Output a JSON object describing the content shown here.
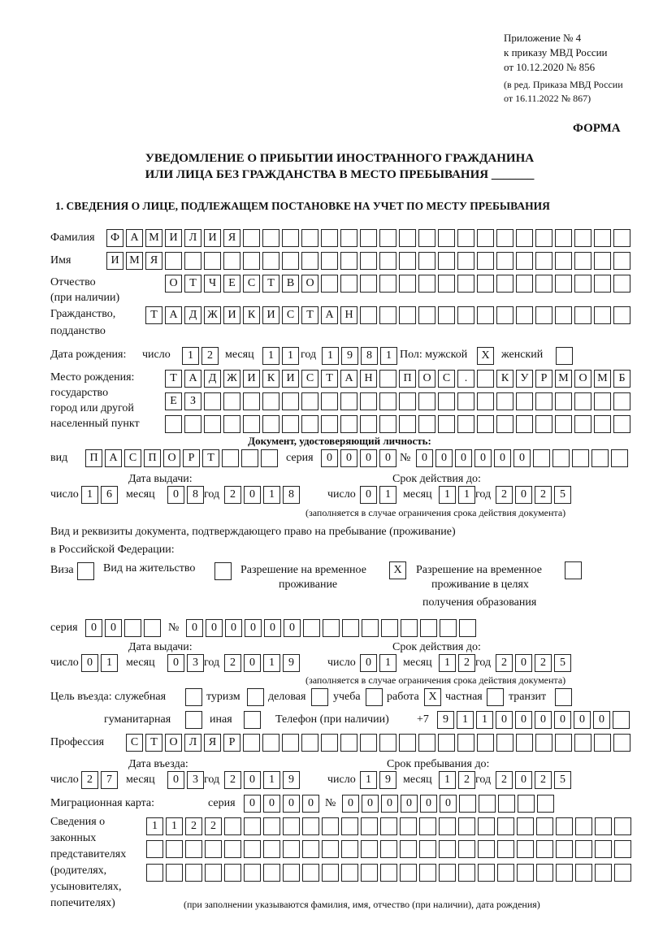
{
  "header": {
    "appendix": "Приложение № 4",
    "order": "к приказу МВД России",
    "order_date": "от 10.12.2020 № 856",
    "revision1": "(в ред. Приказа МВД России",
    "revision2": "от 16.11.2022 № 867)",
    "form": "ФОРМА",
    "title1": "УВЕДОМЛЕНИЕ О ПРИБЫТИИ ИНОСТРАННОГО ГРАЖДАНИНА",
    "title2": "ИЛИ ЛИЦА БЕЗ ГРАЖДАНСТВА В МЕСТО ПРЕБЫВАНИЯ _______",
    "section": "1. СВЕДЕНИЯ О ЛИЦЕ, ПОДЛЕЖАЩЕМ ПОСТАНОВКЕ НА УЧЕТ ПО МЕСТУ ПРЕБЫВАНИЯ"
  },
  "person": {
    "surname_label": "Фамилия",
    "surname": "ФАМИЛИЯ",
    "name_label": "Имя",
    "name": "ИМЯ",
    "patronymic_label": "Отчество",
    "patronymic_label2": "(при наличии)",
    "patronymic": "ОТЧЕСТВО",
    "citizenship_label": "Гражданство,",
    "citizenship_label2": "подданство",
    "citizenship": "ТАДЖИКИСТАН",
    "birth_label": "Дата рождения:",
    "day_label": "число",
    "month_label": "месяц",
    "year_label": "год",
    "birth_day": "12",
    "birth_month": "11",
    "birth_year": "1981",
    "sex_label": "Пол: мужской",
    "male": "X",
    "female_label": "женский",
    "female": "",
    "birthplace_label1": "Место рождения:",
    "birthplace_label2": "государство",
    "birthplace_label3": "город или другой",
    "birthplace_label4": "населенный пункт",
    "birthplace_row1": "ТАДЖИКИСТАН ПОС. КУРМОМБ",
    "birthplace_row2": "ЕЗ",
    "birthplace_row3": ""
  },
  "id_document": {
    "heading": "Документ, удостоверяющий личность:",
    "type_label": "вид",
    "type": "ПАСПОРТ",
    "series_label": "серия",
    "series": "0000",
    "number_label": "№",
    "number": "000000",
    "issue_label": "Дата выдачи:",
    "valid_label": "Срок действия до:",
    "day_label": "число",
    "month_label": "месяц",
    "year_label": "год",
    "issue_day": "16",
    "issue_month": "08",
    "issue_year": "2018",
    "valid_day": "01",
    "valid_month": "11",
    "valid_year": "2025",
    "note": "(заполняется в случае ограничения срока действия документа)"
  },
  "residence_document": {
    "heading1": "Вид и реквизиты документа, подтверждающего право на пребывание (проживание)",
    "heading2": "в Российской Федерации:",
    "visa_label": "Виза",
    "visa": "",
    "residence_permit_label": "Вид на жительство",
    "residence_permit": "",
    "temp_permit_label1": "Разрешение на временное",
    "temp_permit_label2": "проживание",
    "temp_permit": "X",
    "edu_permit_label1": "Разрешение на временное",
    "edu_permit_label2": "проживание в целях",
    "edu_permit_label3": "получения образования",
    "edu_permit": "",
    "series_label": "серия",
    "series": "00",
    "number_label": "№",
    "number": "000000",
    "issue_label": "Дата выдачи:",
    "valid_label": "Срок действия до:",
    "day_label": "число",
    "month_label": "месяц",
    "year_label": "год",
    "issue_day": "01",
    "issue_month": "03",
    "issue_year": "2019",
    "valid_day": "01",
    "valid_month": "12",
    "valid_year": "2025",
    "note": "(заполняется в случае ограничения срока действия документа)"
  },
  "purpose": {
    "label": "Цель въезда: служебная",
    "official": "",
    "tourism_label": "туризм",
    "tourism": "",
    "business_label": "деловая",
    "business": "",
    "study_label": "учеба",
    "study": "",
    "work_label": "работа",
    "work": "X",
    "private_label": "частная",
    "private": "",
    "transit_label": "транзит",
    "transit": "",
    "humanitarian_label": "гуманитарная",
    "humanitarian": "",
    "other_label": "иная",
    "other": "",
    "phone_label": "Телефон (при наличии)",
    "phone_prefix": "+7",
    "phone": "911000000"
  },
  "profession": {
    "label": "Профессия",
    "value": "СТОЛЯР"
  },
  "entry": {
    "entry_label": "Дата въезда:",
    "stay_label": "Срок пребывания до:",
    "day_label": "число",
    "month_label": "месяц",
    "year_label": "год",
    "entry_day": "27",
    "entry_month": "03",
    "entry_year": "2019",
    "stay_day": "19",
    "stay_month": "12",
    "stay_year": "2025"
  },
  "migration_card": {
    "label": "Миграционная карта:",
    "series_label": "серия",
    "series": "0000",
    "number_label": "№",
    "number": "000000"
  },
  "representatives": {
    "label1": "Сведения о",
    "label2": "законных",
    "label3": "представителях",
    "label4": "(родителях,",
    "label5": "усыновителях,",
    "label6": "попечителях)",
    "row1": "1122",
    "row2": "",
    "row3": "",
    "note": "(при заполнении указываются фамилия, имя, отчество (при наличии), дата рождения)"
  }
}
